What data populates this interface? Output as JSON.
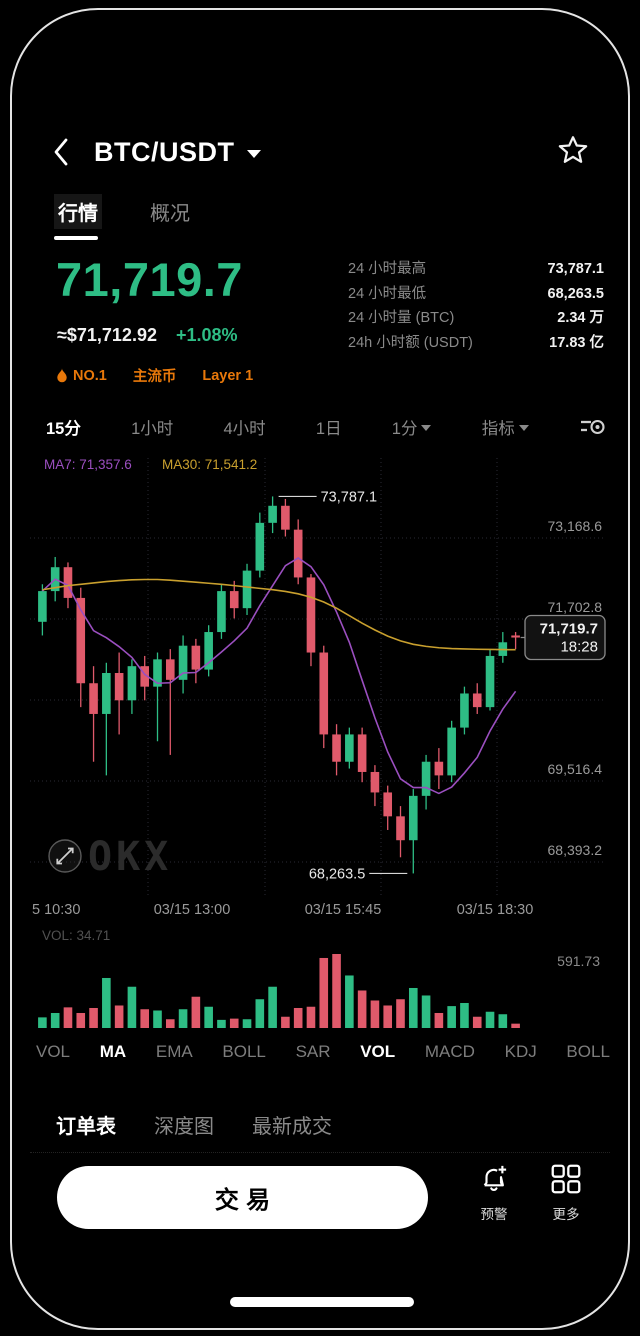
{
  "header": {
    "title": "BTC/USDT"
  },
  "tabs": [
    {
      "label": "行情",
      "active": true
    },
    {
      "label": "概况",
      "active": false
    }
  ],
  "price": {
    "last": "71,719.7",
    "fiat": "≈$71,712.92",
    "change": "+1.08%"
  },
  "badges": [
    {
      "label": "NO.1",
      "icon": "flame"
    },
    {
      "label": "主流币"
    },
    {
      "label": "Layer 1"
    }
  ],
  "stats": [
    {
      "label": "24 小时最高",
      "value": "73,787.1"
    },
    {
      "label": "24 小时最低",
      "value": "68,263.5"
    },
    {
      "label": "24 小时量 (BTC)",
      "value": "2.34 万"
    },
    {
      "label": "24h 小时额 (USDT)",
      "value": "17.83 亿"
    }
  ],
  "timeframes": [
    {
      "label": "15分",
      "active": true
    },
    {
      "label": "1小时"
    },
    {
      "label": "4小时"
    },
    {
      "label": "1日"
    },
    {
      "label": "1分",
      "caret": true
    },
    {
      "label": "指标",
      "caret": true
    }
  ],
  "watermark": "OKX",
  "chart_data": {
    "type": "candlestick",
    "timeframe": "15分",
    "ma7_label": "MA7: 71,357.6",
    "ma30_label": "MA30: 71,541.2",
    "y_labels": [
      "73,168.6",
      "71,702.8",
      "69,516.4",
      "68,393.2"
    ],
    "x_labels": [
      "5 10:30",
      "03/15 13:00",
      "03/15 15:45",
      "03/15 18:30"
    ],
    "high_annotation": "73,787.1",
    "low_annotation": "68,263.5",
    "high_index": 18,
    "low_index": 29,
    "last_price": "71,719.7",
    "last_time": "18:28",
    "last_close": 71719.7,
    "ylim": [
      68050,
      74350
    ],
    "vol_current_label": "VOL: 34.71",
    "vol_max_label": "591.73",
    "vol_max": 591.73,
    "colors": {
      "up": "#2EBD85",
      "down": "#E05A6B",
      "ma7": "#9B4FC0",
      "ma30": "#C9A02E"
    },
    "candles": [
      [
        71950,
        72500,
        71750,
        72400
      ],
      [
        72400,
        72900,
        72250,
        72750
      ],
      [
        72750,
        72820,
        72150,
        72300
      ],
      [
        72300,
        72450,
        70700,
        71050
      ],
      [
        71050,
        71300,
        69900,
        70600
      ],
      [
        70600,
        71350,
        69700,
        71200
      ],
      [
        71200,
        71500,
        70300,
        70800
      ],
      [
        70800,
        71400,
        70600,
        71300
      ],
      [
        71300,
        71450,
        70800,
        71000
      ],
      [
        71000,
        71500,
        70200,
        71400
      ],
      [
        71400,
        71550,
        70000,
        71100
      ],
      [
        71100,
        71750,
        70900,
        71600
      ],
      [
        71600,
        71700,
        71050,
        71250
      ],
      [
        71250,
        71900,
        71150,
        71800
      ],
      [
        71800,
        72500,
        71700,
        72400
      ],
      [
        72400,
        72550,
        72000,
        72150
      ],
      [
        72150,
        72800,
        72050,
        72700
      ],
      [
        72700,
        73550,
        72600,
        73400
      ],
      [
        73400,
        73787.1,
        73250,
        73650
      ],
      [
        73650,
        73750,
        73200,
        73300
      ],
      [
        73300,
        73450,
        72500,
        72600
      ],
      [
        72600,
        72650,
        71300,
        71500
      ],
      [
        71500,
        71600,
        70100,
        70300
      ],
      [
        70300,
        70450,
        69700,
        69900
      ],
      [
        69900,
        70400,
        69800,
        70300
      ],
      [
        70300,
        70400,
        69600,
        69750
      ],
      [
        69750,
        69850,
        69250,
        69450
      ],
      [
        69450,
        69550,
        68900,
        69100
      ],
      [
        69100,
        69250,
        68500,
        68750
      ],
      [
        68750,
        69500,
        68263.5,
        69400
      ],
      [
        69400,
        70000,
        69200,
        69900
      ],
      [
        69900,
        70100,
        69500,
        69700
      ],
      [
        69700,
        70500,
        69600,
        70400
      ],
      [
        70400,
        71000,
        70300,
        70900
      ],
      [
        70900,
        71050,
        70600,
        70700
      ],
      [
        70700,
        71550,
        70650,
        71450
      ],
      [
        71450,
        71800,
        71350,
        71650
      ],
      [
        71750,
        71800,
        71550,
        71719.7
      ]
    ],
    "ma30": [
      72420,
      72450,
      72480,
      72500,
      72520,
      72540,
      72555,
      72565,
      72570,
      72570,
      72560,
      72545,
      72530,
      72515,
      72500,
      72480,
      72460,
      72440,
      72420,
      72395,
      72360,
      72310,
      72240,
      72150,
      72040,
      71930,
      71830,
      71740,
      71670,
      71620,
      71590,
      71570,
      71558,
      71552,
      71548,
      71545,
      71543,
      71541.2
    ],
    "volume": [
      85,
      120,
      165,
      120,
      160,
      400,
      180,
      330,
      150,
      140,
      70,
      150,
      250,
      170,
      65,
      75,
      70,
      230,
      330,
      90,
      160,
      170,
      560,
      591.73,
      420,
      300,
      220,
      180,
      230,
      320,
      260,
      120,
      175,
      200,
      90,
      130,
      110,
      34.71
    ]
  },
  "indicator_tabs": [
    {
      "label": "VOL"
    },
    {
      "label": "MA",
      "active": true
    },
    {
      "label": "EMA"
    },
    {
      "label": "BOLL"
    },
    {
      "label": "SAR"
    },
    {
      "label": "VOL",
      "active": true
    },
    {
      "label": "MACD"
    },
    {
      "label": "KDJ"
    },
    {
      "label": "BOLL"
    }
  ],
  "order_tabs": [
    {
      "label": "订单表",
      "active": true
    },
    {
      "label": "深度图"
    },
    {
      "label": "最新成交"
    }
  ],
  "bottom_bar": {
    "trade": "交易",
    "alert": "预警",
    "more": "更多"
  }
}
